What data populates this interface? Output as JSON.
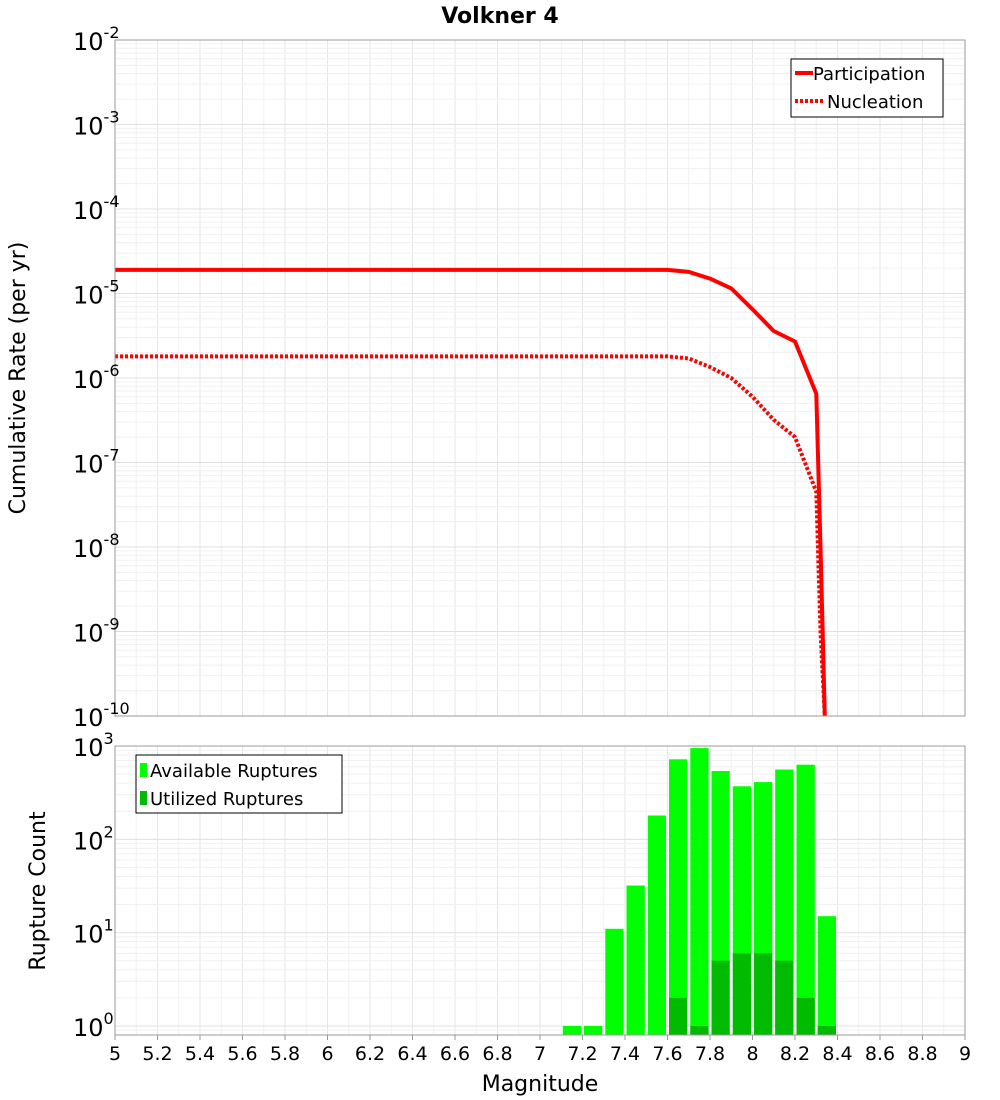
{
  "chart_data": [
    {
      "type": "line",
      "title": "Volkner 4",
      "xlabel": "",
      "ylabel": "Cumulative Rate (per yr)",
      "xlim": [
        5,
        9
      ],
      "ylim": [
        1e-10,
        0.01
      ],
      "yscale": "log",
      "grid": true,
      "legend_position": "top-right",
      "y_ticks": [
        {
          "base": "10",
          "exp": "-2"
        },
        {
          "base": "10",
          "exp": "-3"
        },
        {
          "base": "10",
          "exp": "-4"
        },
        {
          "base": "10",
          "exp": "-5"
        },
        {
          "base": "10",
          "exp": "-6"
        },
        {
          "base": "10",
          "exp": "-7"
        },
        {
          "base": "10",
          "exp": "-8"
        },
        {
          "base": "10",
          "exp": "-9"
        },
        {
          "base": "10",
          "exp": "-10"
        }
      ],
      "series": [
        {
          "name": "Participation",
          "style": "solid",
          "color": "#ff0000",
          "x": [
            5.0,
            7.6,
            7.7,
            7.8,
            7.9,
            8.0,
            8.1,
            8.2,
            8.3,
            8.32,
            8.34
          ],
          "y": [
            1.9e-05,
            1.9e-05,
            1.8e-05,
            1.5e-05,
            1.15e-05,
            6.5e-06,
            3.6e-06,
            2.7e-06,
            6.5e-07,
            1e-08,
            1e-10
          ]
        },
        {
          "name": "Nucleation",
          "style": "dotted",
          "color": "#ff0000",
          "x": [
            5.0,
            7.6,
            7.7,
            7.8,
            7.9,
            8.0,
            8.1,
            8.2,
            8.3,
            8.32,
            8.34
          ],
          "y": [
            1.8e-06,
            1.8e-06,
            1.7e-06,
            1.35e-06,
            1e-06,
            6e-07,
            3.2e-07,
            2e-07,
            4.5e-08,
            1e-09,
            1e-10
          ]
        }
      ]
    },
    {
      "type": "bar",
      "title": "",
      "xlabel": "Magnitude",
      "ylabel": "Rupture Count",
      "xlim": [
        5,
        9
      ],
      "ylim": [
        0.8,
        1000
      ],
      "yscale": "log",
      "grid": true,
      "legend_position": "top-left",
      "x_ticks": [
        "5",
        "5.2",
        "5.4",
        "5.6",
        "5.8",
        "6",
        "6.2",
        "6.4",
        "6.6",
        "6.8",
        "7",
        "7.2",
        "7.4",
        "7.6",
        "7.8",
        "8",
        "8.2",
        "8.4",
        "8.6",
        "8.8",
        "9"
      ],
      "y_ticks": [
        {
          "base": "10",
          "exp": "3"
        },
        {
          "base": "10",
          "exp": "2"
        },
        {
          "base": "10",
          "exp": "1"
        },
        {
          "base": "10",
          "exp": "0"
        }
      ],
      "bin_width": 0.1,
      "series": [
        {
          "name": "Available Ruptures",
          "color": "#00ff00",
          "x": [
            7.15,
            7.25,
            7.35,
            7.45,
            7.55,
            7.65,
            7.75,
            7.85,
            7.95,
            8.05,
            8.15,
            8.25,
            8.35
          ],
          "values": [
            1,
            1,
            11,
            32,
            180,
            720,
            950,
            540,
            370,
            410,
            560,
            630,
            15
          ]
        },
        {
          "name": "Utilized Ruptures",
          "color": "#00bb00",
          "x": [
            7.65,
            7.75,
            7.85,
            7.95,
            8.05,
            8.15,
            8.25,
            8.35
          ],
          "values": [
            2,
            1,
            5,
            6,
            6,
            5,
            2,
            1
          ]
        }
      ]
    }
  ]
}
